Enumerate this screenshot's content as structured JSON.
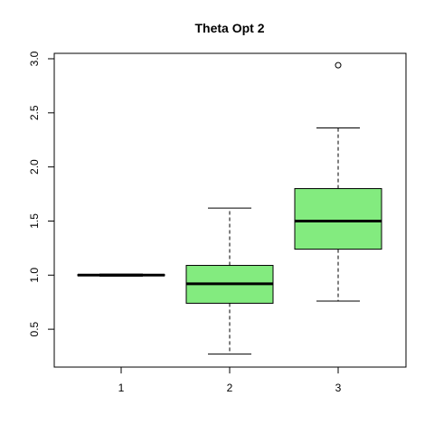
{
  "chart_data": {
    "type": "boxplot",
    "title": "Theta Opt 2",
    "xlabel": "",
    "ylabel": "",
    "categories": [
      "1",
      "2",
      "3"
    ],
    "yticks": [
      "0.5",
      "1.0",
      "1.5",
      "2.0",
      "2.5",
      "3.0"
    ],
    "ylim": [
      0.15,
      3.05
    ],
    "box_color": "#83EB7F",
    "grid": false,
    "boxes": [
      {
        "category": "1",
        "whisker_low": 0.99,
        "q1": 0.995,
        "median": 1.0,
        "q3": 1.005,
        "whisker_high": 1.01,
        "outliers": []
      },
      {
        "category": "2",
        "whisker_low": 0.27,
        "q1": 0.74,
        "median": 0.92,
        "q3": 1.09,
        "whisker_high": 1.62,
        "outliers": []
      },
      {
        "category": "3",
        "whisker_low": 0.76,
        "q1": 1.24,
        "median": 1.5,
        "q3": 1.8,
        "whisker_high": 2.36,
        "outliers": [
          2.94
        ]
      }
    ]
  }
}
